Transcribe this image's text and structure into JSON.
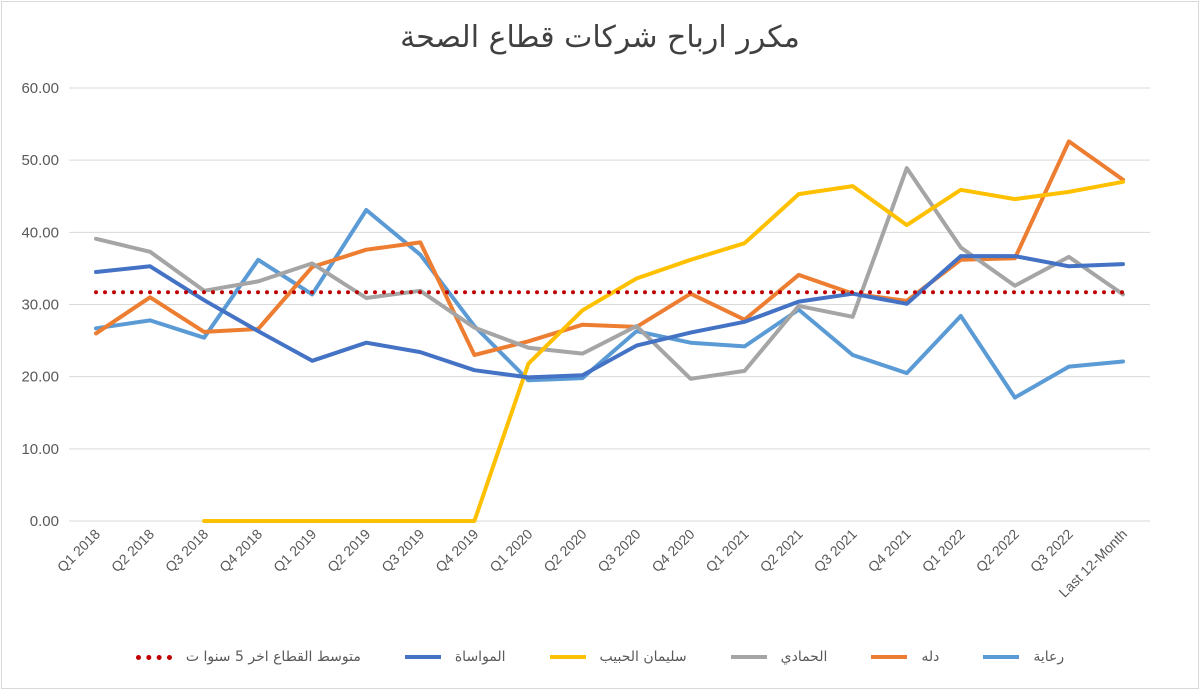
{
  "chart_data": {
    "type": "line",
    "title": "مكرر ارباح شركات قطاع الصحة",
    "xlabel": "",
    "ylabel": "",
    "ylim": [
      0,
      60
    ],
    "yticks": [
      "0.00",
      "10.00",
      "20.00",
      "30.00",
      "40.00",
      "50.00",
      "60.00"
    ],
    "grid": true,
    "legend_position": "bottom",
    "categories": [
      "Q1 2018",
      "Q2 2018",
      "Q3 2018",
      "Q4 2018",
      "Q1 2019",
      "Q2 2019",
      "Q3 2019",
      "Q4 2019",
      "Q1 2020",
      "Q2 2020",
      "Q3 2020",
      "Q4 2020",
      "Q1 2021",
      "Q2 2021",
      "Q3 2021",
      "Q4 2021",
      "Q1 2022",
      "Q2 2022",
      "Q3 2022",
      "Last 12-Month"
    ],
    "series": [
      {
        "name": "رعاية",
        "color": "#5B9BD5",
        "style": "solid",
        "values": [
          26.7,
          27.8,
          25.4,
          36.2,
          31.4,
          43.1,
          36.9,
          27.0,
          19.5,
          19.8,
          26.3,
          24.7,
          24.2,
          29.3,
          23.0,
          20.5,
          28.4,
          17.1,
          21.4,
          22.1
        ]
      },
      {
        "name": "دله",
        "color": "#ED7D31",
        "style": "solid",
        "values": [
          26.0,
          31.0,
          26.2,
          26.6,
          35.2,
          37.6,
          38.6,
          23.0,
          24.9,
          27.2,
          26.9,
          31.5,
          27.9,
          34.1,
          31.5,
          30.5,
          36.2,
          36.4,
          52.6,
          47.3
        ]
      },
      {
        "name": "الحمادي",
        "color": "#A5A5A5",
        "style": "solid",
        "values": [
          39.1,
          37.3,
          31.9,
          33.2,
          35.7,
          30.9,
          31.9,
          26.8,
          24.0,
          23.2,
          27.0,
          19.7,
          20.8,
          29.8,
          28.3,
          48.9,
          37.9,
          32.6,
          36.6,
          31.4
        ]
      },
      {
        "name": "سليمان الحبيب",
        "color": "#FFC000",
        "style": "solid",
        "values": [
          null,
          null,
          0.0,
          0.0,
          0.0,
          0.0,
          0.0,
          0.0,
          21.8,
          29.2,
          33.6,
          36.2,
          38.5,
          45.3,
          46.4,
          41.0,
          45.9,
          44.6,
          45.6,
          47.0
        ]
      },
      {
        "name": "المواساة",
        "color": "#4472C4",
        "style": "solid",
        "values": [
          34.5,
          35.3,
          30.6,
          26.3,
          22.2,
          24.7,
          23.4,
          20.9,
          19.9,
          20.2,
          24.3,
          26.1,
          27.6,
          30.4,
          31.5,
          30.1,
          36.7,
          36.7,
          35.3,
          35.6
        ]
      },
      {
        "name": "متوسط القطاع اخر 5 سنوا ت",
        "color": "#C00000",
        "style": "dotted",
        "values": [
          31.7,
          31.7,
          31.7,
          31.7,
          31.7,
          31.7,
          31.7,
          31.7,
          31.7,
          31.7,
          31.7,
          31.7,
          31.7,
          31.7,
          31.7,
          31.7,
          31.7,
          31.7,
          31.7,
          31.7
        ]
      }
    ]
  }
}
